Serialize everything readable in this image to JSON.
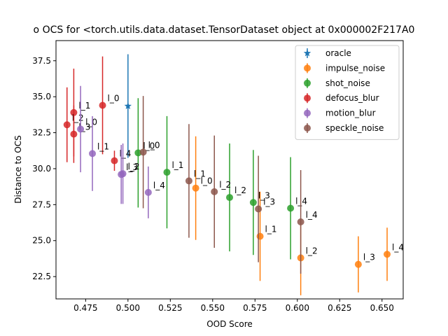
{
  "chart_data": {
    "type": "scatter",
    "title": "o OCS for <torch.utils.data.dataset.TensorDataset object at 0x000002F217A0",
    "xlabel": "OOD Score",
    "ylabel": "Distance to OCS",
    "xlim": [
      0.4575,
      0.6625
    ],
    "ylim": [
      20.95,
      38.9
    ],
    "x_ticks": [
      0.475,
      0.5,
      0.525,
      0.55,
      0.575,
      0.6,
      0.625,
      0.65
    ],
    "x_tick_labels": [
      "0.475",
      "0.500",
      "0.525",
      "0.550",
      "0.575",
      "0.600",
      "0.625",
      "0.650"
    ],
    "y_ticks": [
      22.5,
      25.0,
      27.5,
      30.0,
      32.5,
      35.0,
      37.5
    ],
    "y_tick_labels": [
      "22.5",
      "25.0",
      "27.5",
      "30.0",
      "32.5",
      "35.0",
      "37.5"
    ],
    "legend_position": "top-right",
    "grid": false,
    "series": [
      {
        "name": "oracle",
        "color": "#1f77b4",
        "marker": "star",
        "points": [
          {
            "x": 0.5,
            "y": 34.35,
            "err": 3.6,
            "label": ""
          }
        ]
      },
      {
        "name": "impulse_noise",
        "color": "#ff7f0e",
        "marker": "circle",
        "points": [
          {
            "x": 0.54,
            "y": 28.65,
            "err": 3.6,
            "label": "l_0"
          },
          {
            "x": 0.578,
            "y": 25.3,
            "err": 3.1,
            "label": "l_1"
          },
          {
            "x": 0.602,
            "y": 23.8,
            "err": 2.6,
            "label": "l_2"
          },
          {
            "x": 0.636,
            "y": 23.35,
            "err": 1.95,
            "label": "l_3"
          },
          {
            "x": 0.653,
            "y": 24.05,
            "err": 1.85,
            "label": "l_4"
          }
        ]
      },
      {
        "name": "shot_noise",
        "color": "#2ca02c",
        "marker": "circle",
        "points": [
          {
            "x": 0.506,
            "y": 31.1,
            "err": 3.8,
            "label": "l_0"
          },
          {
            "x": 0.523,
            "y": 29.75,
            "err": 3.9,
            "label": "l_1"
          },
          {
            "x": 0.56,
            "y": 28.0,
            "err": 3.75,
            "label": "l_2"
          },
          {
            "x": 0.574,
            "y": 27.65,
            "err": 3.65,
            "label": "l_3"
          },
          {
            "x": 0.596,
            "y": 27.25,
            "err": 3.55,
            "label": "l_4"
          }
        ]
      },
      {
        "name": "defocus_blur",
        "color": "#d62728",
        "marker": "circle",
        "points": [
          {
            "x": 0.485,
            "y": 34.4,
            "err": 3.4,
            "label": "l_0"
          },
          {
            "x": 0.468,
            "y": 33.9,
            "err": 3.05,
            "label": "l_1"
          },
          {
            "x": 0.464,
            "y": 33.05,
            "err": 2.6,
            "label": "l_2"
          },
          {
            "x": 0.468,
            "y": 32.4,
            "err": 2.0,
            "label": "l_3"
          },
          {
            "x": 0.492,
            "y": 30.55,
            "err": 0.7,
            "label": "l_4"
          }
        ]
      },
      {
        "name": "motion_blur",
        "color": "#9467bd",
        "marker": "circle",
        "points": [
          {
            "x": 0.472,
            "y": 32.75,
            "err": 3.0,
            "label": "l_0"
          },
          {
            "x": 0.479,
            "y": 31.05,
            "err": 2.6,
            "label": "l_1"
          },
          {
            "x": 0.497,
            "y": 29.65,
            "err": 2.1,
            "label": "l_2"
          },
          {
            "x": 0.496,
            "y": 29.6,
            "err": 2.05,
            "label": "l_3"
          },
          {
            "x": 0.512,
            "y": 28.35,
            "err": 1.8,
            "label": "l_4"
          }
        ]
      },
      {
        "name": "speckle_noise",
        "color": "#8c564b",
        "marker": "circle",
        "points": [
          {
            "x": 0.509,
            "y": 31.15,
            "err": 3.9,
            "label": "l_0"
          },
          {
            "x": 0.536,
            "y": 29.15,
            "err": 3.95,
            "label": "l_1"
          },
          {
            "x": 0.551,
            "y": 28.4,
            "err": 3.9,
            "label": "l_2"
          },
          {
            "x": 0.577,
            "y": 27.2,
            "err": 3.7,
            "label": "l_3"
          },
          {
            "x": 0.602,
            "y": 26.3,
            "err": 3.6,
            "label": "l_4"
          }
        ]
      }
    ]
  }
}
